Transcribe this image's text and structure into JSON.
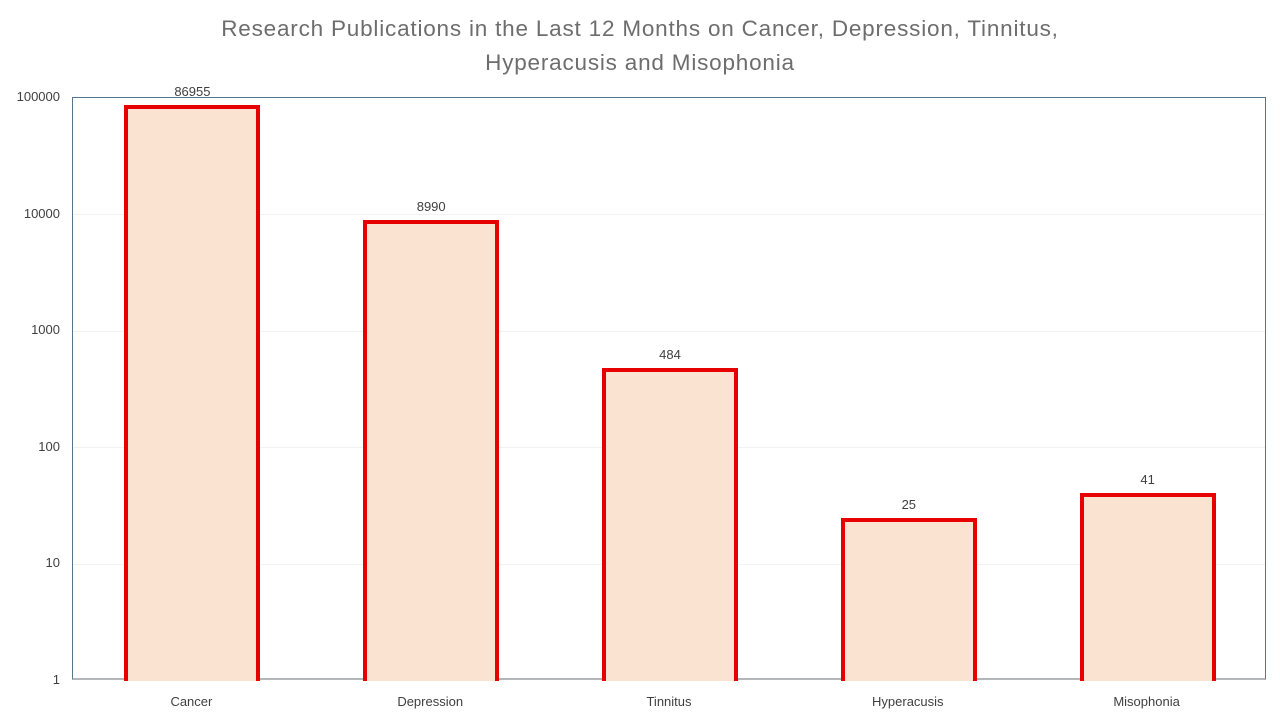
{
  "title": {
    "text": "Research Publications in the Last 12 Months on Cancer, Depression, Tinnitus, Hyperacusis and Misophonia",
    "lines": [
      "Research Publications in the Last 12 Months on Cancer, Depression, Tinnitus,",
      "Hyperacusis and Misophonia"
    ]
  },
  "chart_data": {
    "type": "bar",
    "title": "Research Publications in the Last 12 Months on Cancer, Depression, Tinnitus, Hyperacusis and Misophonia",
    "categories": [
      "Cancer",
      "Depression",
      "Tinnitus",
      "Hyperacusis",
      "Misophonia"
    ],
    "values": [
      86955,
      8990,
      484,
      25,
      41
    ],
    "data_labels": [
      "86955",
      "8990",
      "484",
      "25",
      "41"
    ],
    "xlabel": "",
    "ylabel": "",
    "y_scale": "log",
    "ylim": [
      1,
      100000
    ],
    "y_ticks": [
      1,
      10,
      100,
      1000,
      10000,
      100000
    ],
    "y_tick_labels": [
      "1",
      "10",
      "100",
      "1000",
      "10000",
      "100000"
    ],
    "grid": true,
    "legend": false
  },
  "colors": {
    "bar_fill": "#fbe3d2",
    "bar_border": "#e60000",
    "plot_border": "#54778c",
    "bottom_axis": "#b3b6b8",
    "gridline": "#f2f2f2",
    "title_text": "#6d6d6d",
    "label_text": "#3f3f3f"
  }
}
